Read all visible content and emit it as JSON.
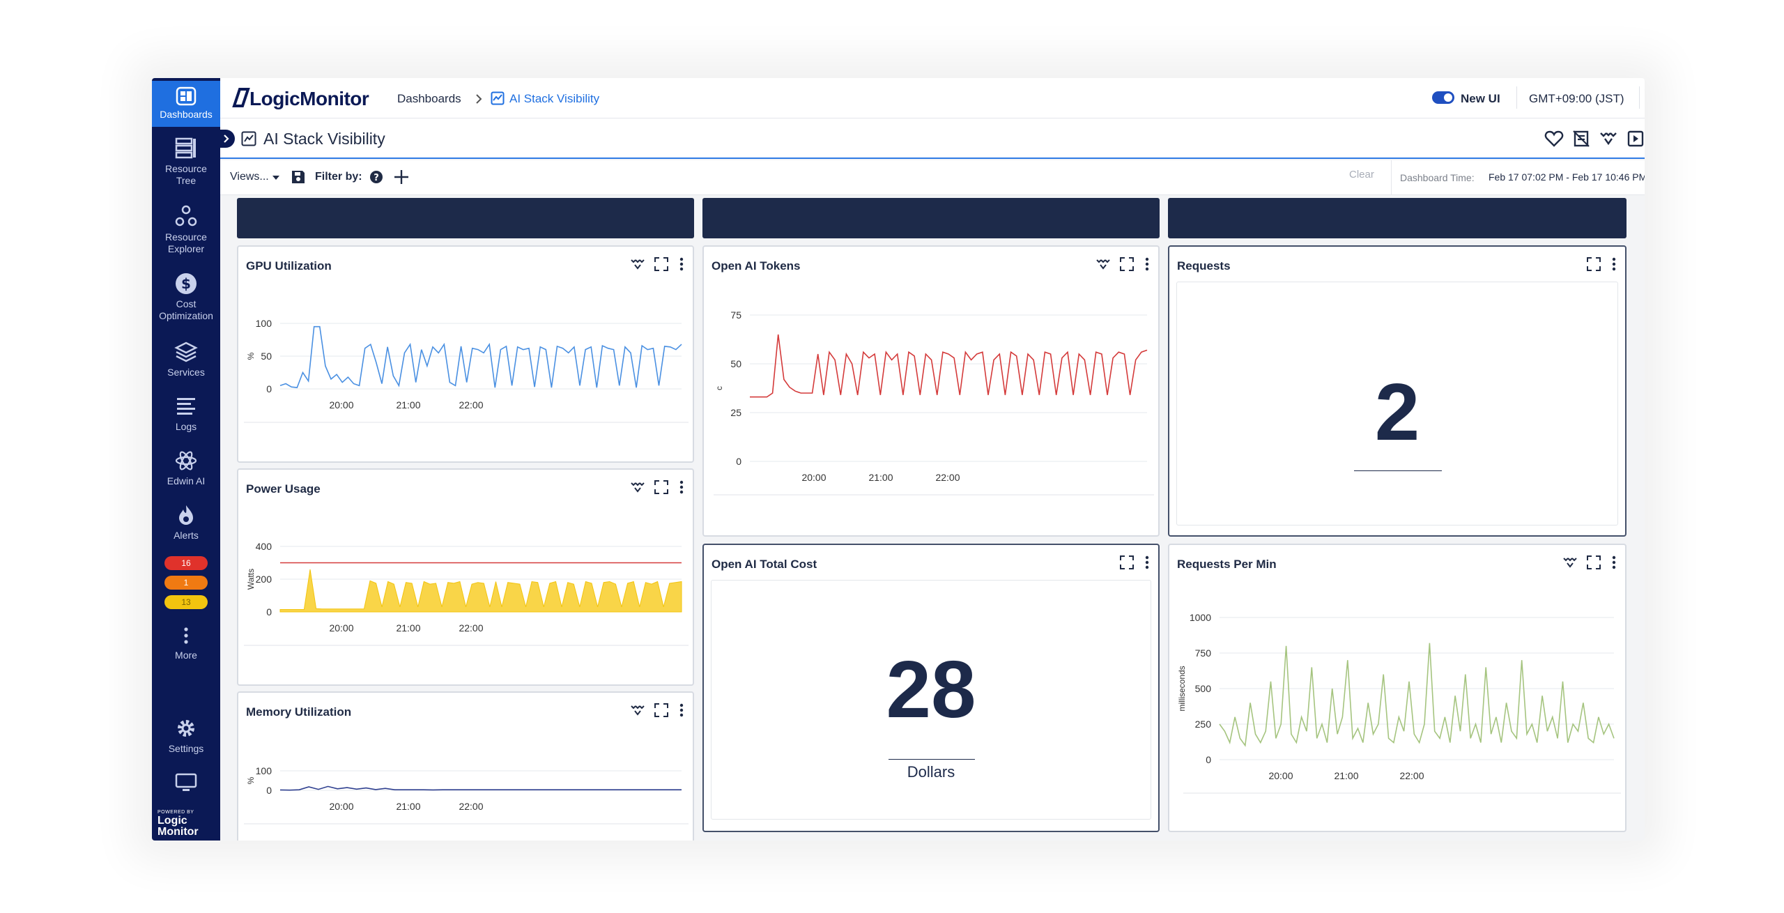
{
  "sidebar": {
    "items": [
      {
        "label": "Dashboards",
        "icon": "dashboards-icon",
        "active": true
      },
      {
        "label": "Resource Tree",
        "icon": "resource-tree-icon"
      },
      {
        "label": "Resource Explorer",
        "icon": "resource-explorer-icon"
      },
      {
        "label": "Cost Optimization",
        "icon": "cost-optimization-icon"
      },
      {
        "label": "Services",
        "icon": "services-icon"
      },
      {
        "label": "Logs",
        "icon": "logs-icon"
      },
      {
        "label": "Edwin AI",
        "icon": "edwin-ai-icon"
      },
      {
        "label": "Alerts",
        "icon": "alerts-icon"
      }
    ],
    "alert_badges": [
      {
        "value": "16",
        "color": "#e0322b"
      },
      {
        "value": "1",
        "color": "#f07a12"
      },
      {
        "value": "13",
        "color": "#f2c40f"
      }
    ],
    "more_label": "More",
    "settings_label": "Settings",
    "powered_by": "POWERED BY",
    "footer_logo": "Logic Monitor"
  },
  "topbar": {
    "logo": "LogicMonitor",
    "breadcrumb_root": "Dashboards",
    "breadcrumb_current": "AI Stack Visibility",
    "new_ui_label": "New UI",
    "timezone": "GMT+09:00 (JST)"
  },
  "titlebar": {
    "title": "AI Stack Visibility"
  },
  "filterbar": {
    "views_label": "Views...",
    "filter_label": "Filter by:",
    "clear_label": "Clear",
    "dashboard_time_label": "Dashboard Time:",
    "dashboard_time_value": "Feb 17 07:02 PM - Feb 17 10:46 PM"
  },
  "colors": {
    "accent": "#1f6fe0",
    "sidebar": "#0b1955",
    "gpu_line": "#4a90e2",
    "tokens_line": "#d43a3a",
    "power_fill": "#f9d548",
    "power_threshold": "#d43a3a",
    "memory_line": "#2e3f8f",
    "rpm_line": "#a5c47f"
  },
  "widgets": {
    "gpu": {
      "title": "GPU Utilization"
    },
    "power": {
      "title": "Power Usage"
    },
    "memory": {
      "title": "Memory Utilization"
    },
    "tokens": {
      "title": "Open AI Tokens"
    },
    "cost": {
      "title": "Open AI Total Cost",
      "value": "28",
      "unit": "Dollars"
    },
    "requests": {
      "title": "Requests",
      "value": "2"
    },
    "rpm": {
      "title": "Requests Per Min"
    }
  },
  "chart_data": [
    {
      "id": "gpu",
      "type": "line",
      "title": "GPU Utilization",
      "ylabel": "%",
      "ylim": [
        0,
        100
      ],
      "yticks": [
        0,
        50,
        100
      ],
      "xticks": [
        "20:00",
        "21:00",
        "22:00"
      ],
      "series": [
        {
          "values": [
            5,
            8,
            3,
            2,
            25,
            12,
            95,
            95,
            35,
            15,
            22,
            10,
            18,
            8,
            5,
            62,
            68,
            40,
            8,
            64,
            20,
            5,
            55,
            68,
            10,
            60,
            35,
            64,
            55,
            68,
            10,
            5,
            65,
            10,
            62,
            60,
            55,
            68,
            2,
            60,
            65,
            5,
            64,
            60,
            62,
            3,
            64,
            60,
            2,
            65,
            62,
            55,
            64,
            5,
            60,
            64,
            2,
            66,
            62,
            60,
            5,
            64,
            55,
            2,
            66,
            60,
            62,
            5,
            65,
            64,
            60,
            68
          ]
        }
      ]
    },
    {
      "id": "power",
      "type": "area",
      "title": "Power Usage",
      "ylabel": "Watts",
      "ylim": [
        0,
        400
      ],
      "yticks": [
        0,
        200,
        400
      ],
      "xticks": [
        "20:00",
        "21:00",
        "22:00"
      ],
      "threshold": 300,
      "series": [
        {
          "values": [
            15,
            15,
            15,
            15,
            15,
            260,
            20,
            18,
            18,
            18,
            18,
            18,
            18,
            18,
            18,
            190,
            175,
            30,
            185,
            170,
            30,
            180,
            175,
            30,
            185,
            170,
            175,
            30,
            180,
            175,
            185,
            30,
            170,
            180,
            175,
            30,
            185,
            30,
            180,
            175,
            170,
            30,
            185,
            180,
            30,
            175,
            185,
            30,
            180,
            170,
            30,
            185,
            175,
            30,
            180,
            185,
            170,
            30,
            175,
            185,
            30,
            180,
            170,
            185,
            30,
            175,
            180,
            185
          ]
        }
      ]
    },
    {
      "id": "memory",
      "type": "line",
      "title": "Memory Utilization",
      "ylabel": "%",
      "ylim": [
        0,
        100
      ],
      "yticks": [
        0,
        100
      ],
      "xticks": [
        "20:00",
        "21:00",
        "22:00"
      ],
      "series": [
        {
          "values": [
            2,
            1,
            3,
            18,
            5,
            20,
            8,
            14,
            6,
            12,
            4,
            10,
            3,
            3,
            3,
            3,
            2,
            3,
            3,
            3,
            3,
            3,
            3,
            3,
            3,
            3,
            3,
            3,
            3,
            3,
            3,
            3,
            3,
            3,
            3,
            3,
            3,
            3,
            3,
            3,
            3,
            3,
            3
          ]
        }
      ]
    },
    {
      "id": "tokens",
      "type": "line",
      "title": "Open AI Tokens",
      "ylabel": "c",
      "ylim": [
        0,
        75
      ],
      "yticks": [
        0,
        25,
        50,
        75
      ],
      "xticks": [
        "20:00",
        "21:00",
        "22:00"
      ],
      "series": [
        {
          "values": [
            33,
            33,
            33,
            33,
            35,
            65,
            42,
            38,
            36,
            35,
            35,
            35,
            55,
            34,
            56,
            52,
            34,
            55,
            50,
            34,
            56,
            53,
            55,
            34,
            56,
            52,
            55,
            34,
            56,
            54,
            34,
            55,
            52,
            34,
            56,
            55,
            53,
            34,
            56,
            52,
            55,
            56,
            34,
            52,
            55,
            34,
            56,
            54,
            34,
            55,
            52,
            34,
            56,
            55,
            34,
            53,
            56,
            34,
            55,
            52,
            34,
            56,
            55,
            34,
            53,
            56,
            55,
            34,
            52,
            56,
            57
          ]
        }
      ]
    },
    {
      "id": "rpm",
      "type": "line",
      "title": "Requests Per Min",
      "ylabel": "milliseconds",
      "ylim": [
        0,
        1000
      ],
      "yticks": [
        0,
        250,
        500,
        750,
        1000
      ],
      "xticks": [
        "20:00",
        "21:00",
        "22:00"
      ],
      "series": [
        {
          "values": [
            250,
            200,
            120,
            300,
            150,
            100,
            400,
            180,
            120,
            200,
            550,
            150,
            250,
            800,
            180,
            120,
            300,
            200,
            650,
            150,
            250,
            120,
            500,
            180,
            300,
            700,
            150,
            220,
            120,
            400,
            180,
            250,
            600,
            150,
            120,
            300,
            200,
            550,
            180,
            120,
            250,
            820,
            200,
            150,
            300,
            120,
            450,
            200,
            600,
            150,
            250,
            120,
            650,
            180,
            300,
            120,
            400,
            200,
            150,
            700,
            180,
            250,
            120,
            450,
            200,
            300,
            150,
            550,
            120,
            250,
            200,
            400,
            150,
            120,
            300,
            180,
            250,
            150
          ]
        }
      ]
    }
  ]
}
